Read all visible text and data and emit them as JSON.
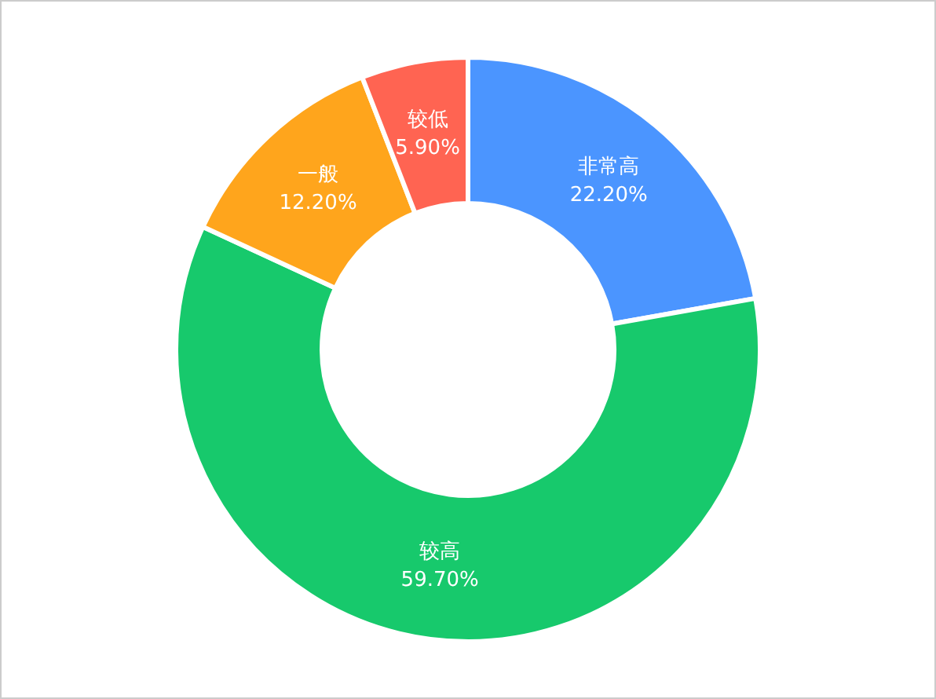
{
  "chart_data": {
    "type": "donut",
    "categories": [
      "非常高",
      "较高",
      "一般",
      "较低"
    ],
    "values": [
      22.2,
      59.7,
      12.2,
      5.9
    ],
    "value_labels": [
      "22.20%",
      "59.70%",
      "12.20%",
      "5.90%"
    ],
    "colors": [
      "#4b95ff",
      "#17c96c",
      "#ffa51c",
      "#ff6452"
    ],
    "legend": false
  }
}
